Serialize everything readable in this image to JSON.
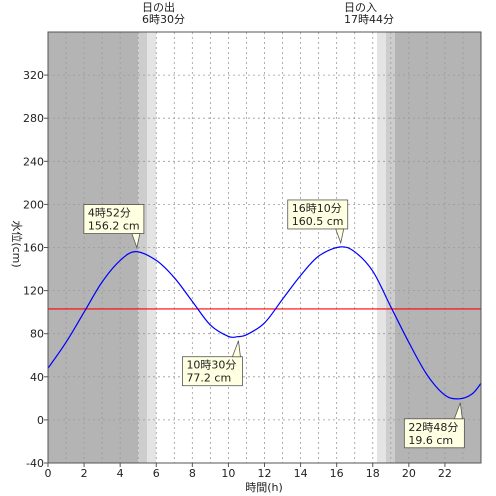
{
  "sun_events": {
    "sunrise": {
      "label": "日の出",
      "time": "6時30分",
      "hour": 6.5
    },
    "sunset": {
      "label": "日の入",
      "time": "17時44分",
      "hour": 17.733
    }
  },
  "colors": {
    "night": "#b4b4b4",
    "twilight_dark": "#cdcdcd",
    "twilight_light": "#e4e4e4",
    "day": "#ffffff",
    "curve": "#0000ff",
    "reference_line": "#ff0000",
    "callout_fill": "#ffffe1"
  },
  "chart_data": {
    "type": "line",
    "xlabel": "時間(h)",
    "ylabel": "水位(cm)",
    "xlim": [
      0,
      24
    ],
    "ylim": [
      -40,
      360
    ],
    "xticks": [
      0,
      2,
      4,
      6,
      8,
      10,
      12,
      14,
      16,
      18,
      20,
      22
    ],
    "yticks": [
      -40,
      0,
      40,
      80,
      120,
      160,
      200,
      240,
      280,
      320
    ],
    "grid": true,
    "reference_line_y": 103,
    "series": [
      {
        "points": [
          [
            0,
            48
          ],
          [
            1,
            72
          ],
          [
            2,
            100
          ],
          [
            3,
            128
          ],
          [
            4,
            148
          ],
          [
            4.87,
            156.2
          ],
          [
            6,
            148
          ],
          [
            7,
            132
          ],
          [
            8,
            110
          ],
          [
            9,
            88
          ],
          [
            10,
            77.5
          ],
          [
            10.5,
            77.2
          ],
          [
            11,
            79
          ],
          [
            12,
            90
          ],
          [
            13,
            112
          ],
          [
            14,
            134
          ],
          [
            15,
            152
          ],
          [
            16.17,
            160.5
          ],
          [
            17,
            156
          ],
          [
            18,
            138
          ],
          [
            19,
            105
          ],
          [
            20,
            72
          ],
          [
            21,
            42
          ],
          [
            22,
            23
          ],
          [
            22.8,
            19.6
          ],
          [
            23.5,
            24
          ],
          [
            24,
            34
          ]
        ]
      }
    ],
    "annotations": [
      {
        "x": 4.87,
        "y": 156.2,
        "time": "4時52分",
        "level": "156.2 cm",
        "position": "above"
      },
      {
        "x": 10.5,
        "y": 77.2,
        "time": "10時30分",
        "level": "77.2 cm",
        "position": "below"
      },
      {
        "x": 16.17,
        "y": 160.5,
        "time": "16時10分",
        "level": "160.5 cm",
        "position": "above"
      },
      {
        "x": 22.8,
        "y": 19.6,
        "time": "22時48分",
        "level": "19.6 cm",
        "position": "below"
      }
    ]
  }
}
